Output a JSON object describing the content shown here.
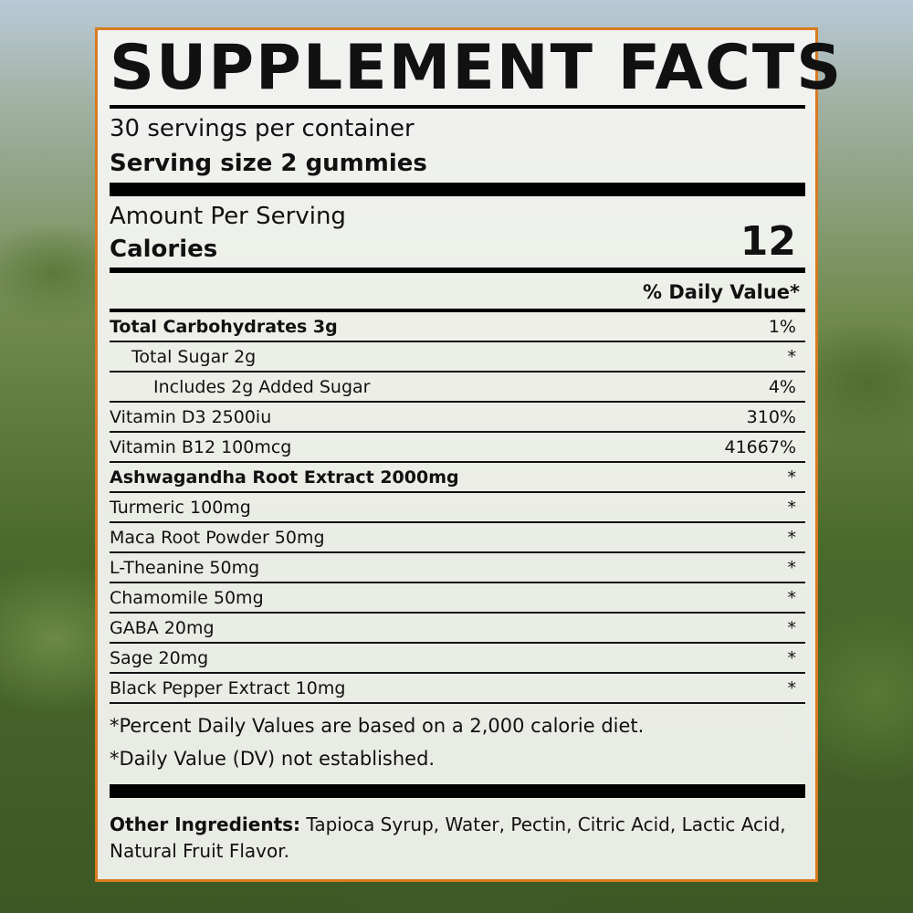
{
  "title": "SUPPLEMENT FACTS",
  "servings_per_container": "30 servings per container",
  "serving_size": "Serving size 2 gummies",
  "amount_per_serving": "Amount Per Serving",
  "calories_label": "Calories",
  "calories_value": "12",
  "daily_value_header": "% Daily Value*",
  "rows": [
    {
      "name": "Total Carbohydrates 3g",
      "dv": "1%",
      "bold": true,
      "indent": 0
    },
    {
      "name": "Total Sugar 2g",
      "dv": "*",
      "bold": false,
      "indent": 1
    },
    {
      "name": "Includes 2g Added Sugar",
      "dv": "4%",
      "bold": false,
      "indent": 2
    },
    {
      "name": "Vitamin D3 2500iu",
      "dv": "310%",
      "bold": false,
      "indent": 0
    },
    {
      "name": "Vitamin B12 100mcg",
      "dv": "41667%",
      "bold": false,
      "indent": 0
    },
    {
      "name": "Ashwagandha Root Extract 2000mg",
      "dv": "*",
      "bold": true,
      "indent": 0
    },
    {
      "name": "Turmeric 100mg",
      "dv": "*",
      "bold": false,
      "indent": 0
    },
    {
      "name": "Maca Root Powder 50mg",
      "dv": "*",
      "bold": false,
      "indent": 0
    },
    {
      "name": "L-Theanine 50mg",
      "dv": "*",
      "bold": false,
      "indent": 0
    },
    {
      "name": "Chamomile 50mg",
      "dv": "*",
      "bold": false,
      "indent": 0
    },
    {
      "name": "GABA 20mg",
      "dv": "*",
      "bold": false,
      "indent": 0
    },
    {
      "name": "Sage 20mg",
      "dv": "*",
      "bold": false,
      "indent": 0
    },
    {
      "name": "Black Pepper Extract 10mg",
      "dv": "*",
      "bold": false,
      "indent": 0
    }
  ],
  "footnote_1": "*Percent Daily Values are based on a 2,000 calorie diet.",
  "footnote_2": "*Daily Value (DV) not established.",
  "other_ingredients_label": "Other Ingredients:",
  "other_ingredients_text": " Tapioca Syrup, Water, Pectin, Citric Acid, Lactic Acid, Natural Fruit Flavor.",
  "colors": {
    "border": "#d97a1f"
  }
}
